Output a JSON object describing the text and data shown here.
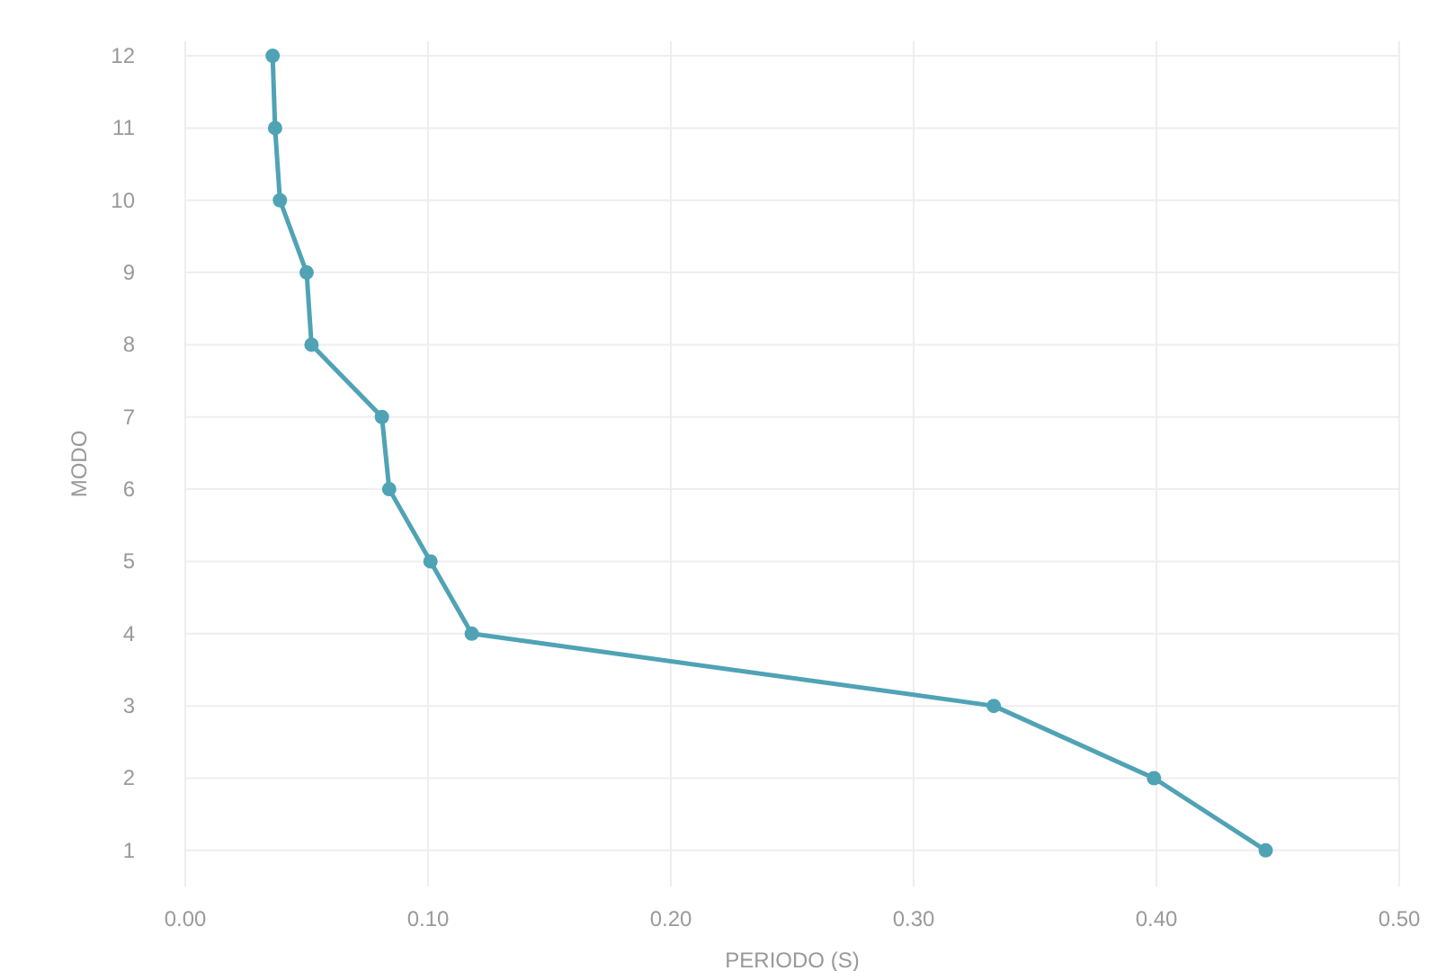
{
  "chart_data": {
    "type": "line",
    "xlabel": "PERIODO (S)",
    "ylabel": "MODO",
    "x": [
      0.445,
      0.399,
      0.333,
      0.118,
      0.101,
      0.084,
      0.081,
      0.052,
      0.05,
      0.039,
      0.037,
      0.036
    ],
    "series": [
      {
        "color": "#4fa3b5",
        "values": [
          1,
          2,
          3,
          4,
          5,
          6,
          7,
          8,
          9,
          10,
          11,
          12
        ]
      }
    ],
    "xlim": [
      0,
      0.5
    ],
    "xticks": [
      {
        "value": 0,
        "label": "0.00"
      },
      {
        "value": 0.1,
        "label": "0.10"
      },
      {
        "value": 0.2,
        "label": "0.20"
      },
      {
        "value": 0.3,
        "label": "0.30"
      },
      {
        "value": 0.4,
        "label": "0.40"
      },
      {
        "value": 0.5,
        "label": "0.50"
      }
    ],
    "ylim": [
      0.5,
      12.2
    ],
    "yticks": [
      1,
      2,
      3,
      4,
      5,
      6,
      7,
      8,
      9,
      10,
      11,
      12
    ],
    "grid": true,
    "marker": "circle",
    "line_style": "solid"
  }
}
